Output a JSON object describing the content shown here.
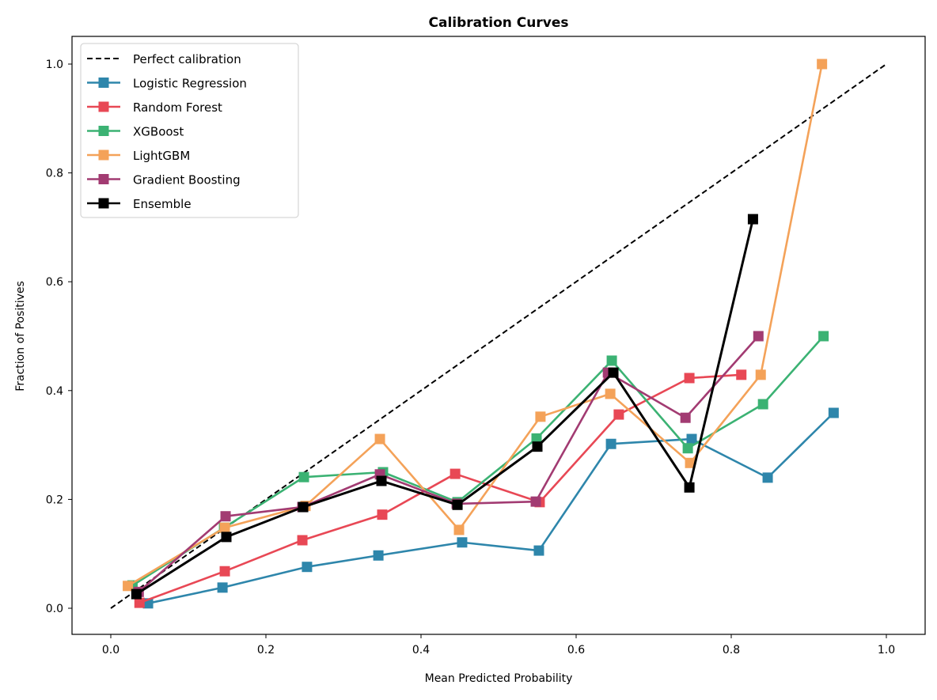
{
  "chart_data": {
    "type": "line",
    "title": "Calibration Curves",
    "xlabel": "Mean Predicted Probability",
    "ylabel": "Fraction of Positives",
    "xlim": [
      -0.05,
      1.05
    ],
    "ylim": [
      -0.05,
      1.05
    ],
    "xticks": [
      "0.0",
      "0.2",
      "0.4",
      "0.6",
      "0.8",
      "1.0"
    ],
    "yticks": [
      "0.0",
      "0.2",
      "0.4",
      "0.6",
      "0.8",
      "1.0"
    ],
    "grid": false,
    "legend_position": "top-left",
    "reference": {
      "name": "Perfect calibration",
      "x": [
        0,
        1
      ],
      "y": [
        0,
        1
      ],
      "color": "#000000",
      "style": "dashed"
    },
    "series": [
      {
        "name": "Logistic Regression",
        "color": "#2E86AB",
        "x": [
          0.048,
          0.144,
          0.253,
          0.345,
          0.453,
          0.552,
          0.645,
          0.749,
          0.847,
          0.932
        ],
        "y": [
          0.009,
          0.038,
          0.076,
          0.097,
          0.121,
          0.106,
          0.302,
          0.311,
          0.24,
          0.359
        ]
      },
      {
        "name": "Random Forest",
        "color": "#E84855",
        "x": [
          0.037,
          0.147,
          0.247,
          0.35,
          0.444,
          0.553,
          0.655,
          0.746,
          0.813
        ],
        "y": [
          0.01,
          0.068,
          0.125,
          0.172,
          0.247,
          0.195,
          0.356,
          0.423,
          0.429
        ]
      },
      {
        "name": "XGBoost",
        "color": "#3BB273",
        "x": [
          0.028,
          0.146,
          0.249,
          0.351,
          0.447,
          0.549,
          0.646,
          0.744,
          0.841,
          0.919
        ],
        "y": [
          0.042,
          0.148,
          0.241,
          0.25,
          0.195,
          0.312,
          0.455,
          0.294,
          0.375,
          0.5
        ]
      },
      {
        "name": "LightGBM",
        "color": "#F4A259",
        "x": [
          0.022,
          0.147,
          0.251,
          0.347,
          0.449,
          0.554,
          0.644,
          0.747,
          0.838,
          0.917
        ],
        "y": [
          0.041,
          0.148,
          0.188,
          0.311,
          0.144,
          0.352,
          0.394,
          0.267,
          0.429,
          1.0
        ]
      },
      {
        "name": "Gradient Boosting",
        "color": "#A23B72",
        "x": [
          0.036,
          0.148,
          0.247,
          0.347,
          0.446,
          0.548,
          0.641,
          0.741,
          0.835
        ],
        "y": [
          0.03,
          0.169,
          0.186,
          0.246,
          0.192,
          0.196,
          0.433,
          0.35,
          0.5
        ]
      },
      {
        "name": "Ensemble",
        "color": "#000000",
        "x": [
          0.033,
          0.149,
          0.248,
          0.349,
          0.447,
          0.55,
          0.648,
          0.746,
          0.828
        ],
        "y": [
          0.026,
          0.131,
          0.186,
          0.234,
          0.19,
          0.297,
          0.433,
          0.222,
          0.715
        ]
      }
    ]
  }
}
